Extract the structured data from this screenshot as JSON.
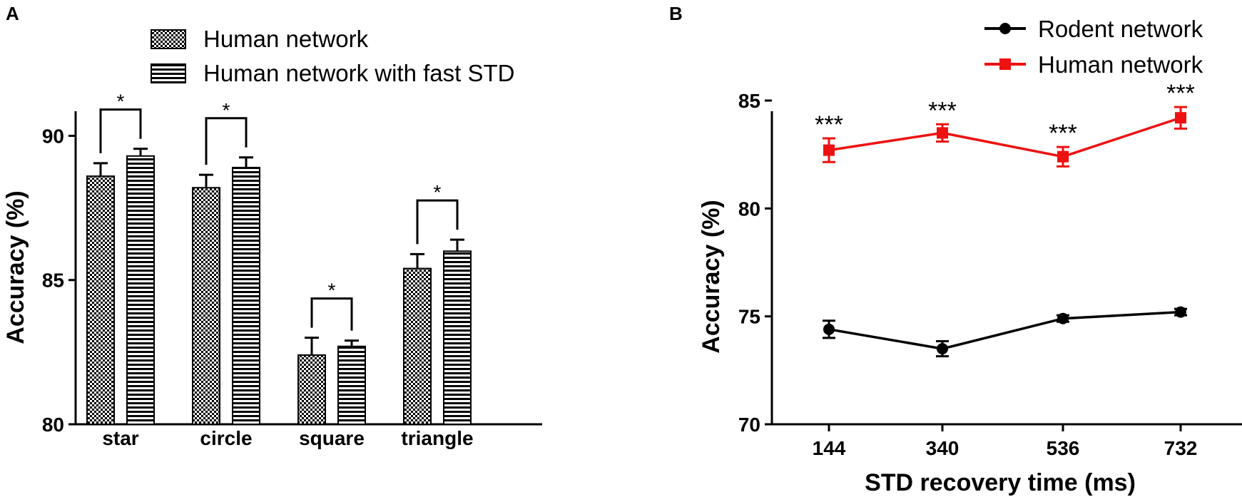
{
  "panels": {
    "a": {
      "letter": "A"
    },
    "b": {
      "letter": "B"
    }
  },
  "chart_data": [
    {
      "type": "bar",
      "title": "",
      "xlabel": "",
      "ylabel": "Accuracy (%)",
      "ylim": [
        80,
        91
      ],
      "yticks": [
        "80",
        "85",
        "90"
      ],
      "categories": [
        "star",
        "circle",
        "square",
        "triangle"
      ],
      "legend_position": "top",
      "series": [
        {
          "name": "Human network",
          "pattern": "checker",
          "values": [
            88.6,
            88.2,
            82.4,
            85.4
          ],
          "errors": [
            0.45,
            0.45,
            0.6,
            0.5
          ]
        },
        {
          "name": "Human network with fast STD",
          "pattern": "horizontal-stripes",
          "values": [
            89.3,
            88.9,
            82.7,
            86.0
          ],
          "errors": [
            0.25,
            0.35,
            0.2,
            0.4
          ]
        }
      ],
      "annotations": [
        "*",
        "*",
        "*",
        "*"
      ]
    },
    {
      "type": "line",
      "title": "",
      "xlabel": "STD recovery time (ms)",
      "ylabel": "Accuracy (%)",
      "ylim": [
        70,
        85
      ],
      "yticks": [
        "70",
        "75",
        "80",
        "85"
      ],
      "x": [
        "144",
        "340",
        "536",
        "732"
      ],
      "legend_position": "top-right",
      "series": [
        {
          "name": "Rodent network",
          "color": "#000000",
          "marker": "circle",
          "values": [
            74.4,
            73.5,
            74.9,
            75.2
          ],
          "errors": [
            0.4,
            0.35,
            0.15,
            0.15
          ]
        },
        {
          "name": "Human network",
          "color": "#ee1111",
          "marker": "square",
          "values": [
            82.7,
            83.5,
            82.4,
            84.2
          ],
          "errors": [
            0.55,
            0.4,
            0.45,
            0.5
          ]
        }
      ],
      "annotations": [
        "***",
        "***",
        "***",
        "***"
      ]
    }
  ]
}
